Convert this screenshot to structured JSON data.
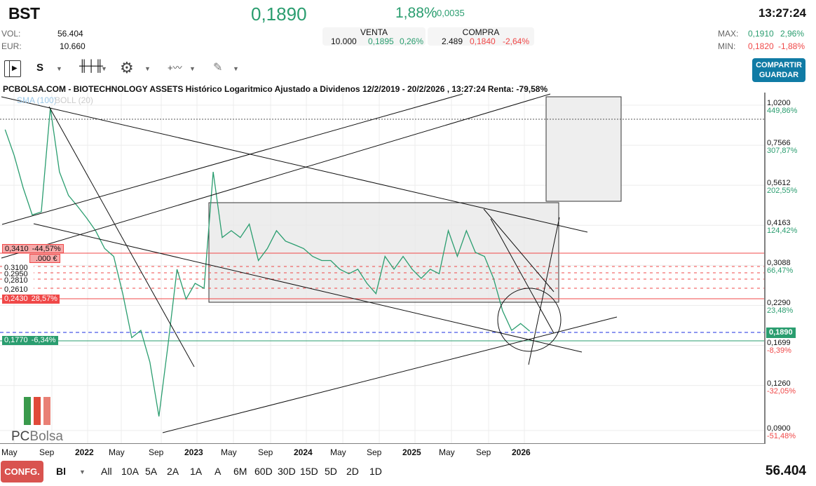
{
  "header": {
    "ticker": "BST",
    "price": "0,1890",
    "pct": "1,88%",
    "change": "0,0035",
    "time": "13:27:24",
    "vol_label": "VOL:",
    "vol": "56.404",
    "eur_label": "EUR:",
    "eur": "10.660",
    "max_label": "MAX:",
    "max": "0,1910",
    "max_pct": "2,96%",
    "min_label": "MIN:",
    "min": "0,1820",
    "min_pct": "-1,88%"
  },
  "venta": {
    "label": "VENTA",
    "qty": "10.000",
    "price": "0,1895",
    "pct": "0,26%"
  },
  "compra": {
    "label": "COMPRA",
    "qty": "2.489",
    "price": "0,1840",
    "pct": "-2,64%"
  },
  "toolbar": {
    "scale": "S",
    "share_line1": "COMPARTIR",
    "share_line2": "GUARDAR"
  },
  "colors": {
    "up": "#2a9d6f",
    "down": "#f04848",
    "accent": "#107ba5"
  },
  "footer": {
    "config": "CONFG.",
    "mode": "Bl",
    "ranges": [
      "All",
      "10A",
      "5A",
      "2A",
      "1A",
      "A",
      "6M",
      "60D",
      "30D",
      "15D",
      "5D",
      "2D",
      "1D"
    ],
    "volume": "56.404"
  },
  "logo": "PCBolsa",
  "levels": [
    {
      "price": "0,3410",
      "pct": "-44,57%",
      "style": "red-light"
    },
    {
      "price": "",
      "pct": ".000 €",
      "style": "red-light"
    },
    {
      "price": "0,3100",
      "pct": "",
      "style": "plain"
    },
    {
      "price": "0,2950",
      "pct": "",
      "style": "plain"
    },
    {
      "price": "0,2810",
      "pct": "",
      "style": "plain"
    },
    {
      "price": "0,2610",
      "pct": "",
      "style": "plain"
    },
    {
      "price": "0,2430",
      "pct": "28,57%",
      "style": "red"
    },
    {
      "price": "0,1770",
      "pct": "-6,34%",
      "style": "green"
    }
  ],
  "chart_data": {
    "type": "line",
    "title": "PCBOLSA.COM - BIOTECHNOLOGY ASSETS Histórico Logaritmico Ajustado a Dividenos 12/2/2019 - 20/2/2026 , 13:27:24 Renta: -79,58%",
    "indicators": [
      "SMA (100)",
      "BOLL (20)"
    ],
    "yscale": "log",
    "ylim": [
      0.085,
      1.05
    ],
    "grid": true,
    "y_ticks": [
      {
        "v": "1,0200",
        "p": "449,86%"
      },
      {
        "v": "0,7566",
        "p": "307,87%"
      },
      {
        "v": "0,5612",
        "p": "202,55%"
      },
      {
        "v": "0,4163",
        "p": "124,42%"
      },
      {
        "v": "0,3088",
        "p": "66,47%"
      },
      {
        "v": "0,2290",
        "p": "23,48%"
      },
      {
        "v": "0,1699",
        "p": "-8,39%"
      },
      {
        "v": "0,1260",
        "p": "-32,05%"
      },
      {
        "v": "0,0900",
        "p": "-51,48%"
      }
    ],
    "current": "0,1890",
    "x_ticks": [
      {
        "l": "May",
        "b": false
      },
      {
        "l": "Sep",
        "b": false
      },
      {
        "l": "2022",
        "b": true
      },
      {
        "l": "May",
        "b": false
      },
      {
        "l": "Sep",
        "b": false
      },
      {
        "l": "2023",
        "b": true
      },
      {
        "l": "May",
        "b": false
      },
      {
        "l": "Sep",
        "b": false
      },
      {
        "l": "2024",
        "b": true
      },
      {
        "l": "May",
        "b": false
      },
      {
        "l": "Sep",
        "b": false
      },
      {
        "l": "2025",
        "b": true
      },
      {
        "l": "May",
        "b": false
      },
      {
        "l": "Sep",
        "b": false
      },
      {
        "l": "2026",
        "b": true
      }
    ],
    "series": [
      {
        "x": [
          "2021-04",
          "2021-05",
          "2021-06",
          "2021-07",
          "2021-08",
          "2021-09",
          "2021-10",
          "2021-11",
          "2021-12",
          "2022-01",
          "2022-02",
          "2022-03",
          "2022-04",
          "2022-05",
          "2022-06",
          "2022-07",
          "2022-08",
          "2022-09",
          "2022-10",
          "2022-11",
          "2022-12",
          "2023-01",
          "2023-02",
          "2023-03",
          "2023-04",
          "2023-05",
          "2023-06",
          "2023-07",
          "2023-08",
          "2023-09",
          "2023-10",
          "2023-11",
          "2023-12",
          "2024-01",
          "2024-02",
          "2024-03",
          "2024-04",
          "2024-05",
          "2024-06",
          "2024-07",
          "2024-08",
          "2024-09",
          "2024-10",
          "2024-11",
          "2024-12",
          "2025-01",
          "2025-02",
          "2025-03",
          "2025-04",
          "2025-05",
          "2025-06",
          "2025-07",
          "2025-08",
          "2025-09",
          "2025-10",
          "2025-11",
          "2025-12",
          "2026-01",
          "2026-02"
        ],
        "y": [
          0.85,
          0.7,
          0.55,
          0.45,
          0.46,
          1.0,
          0.62,
          0.52,
          0.48,
          0.44,
          0.4,
          0.35,
          0.33,
          0.25,
          0.18,
          0.19,
          0.15,
          0.1,
          0.17,
          0.3,
          0.24,
          0.27,
          0.26,
          0.62,
          0.38,
          0.4,
          0.38,
          0.42,
          0.32,
          0.35,
          0.4,
          0.37,
          0.36,
          0.35,
          0.33,
          0.32,
          0.32,
          0.3,
          0.29,
          0.3,
          0.27,
          0.25,
          0.33,
          0.3,
          0.33,
          0.3,
          0.28,
          0.3,
          0.29,
          0.4,
          0.33,
          0.4,
          0.34,
          0.33,
          0.28,
          0.22,
          0.19,
          0.2,
          0.189
        ]
      }
    ]
  }
}
